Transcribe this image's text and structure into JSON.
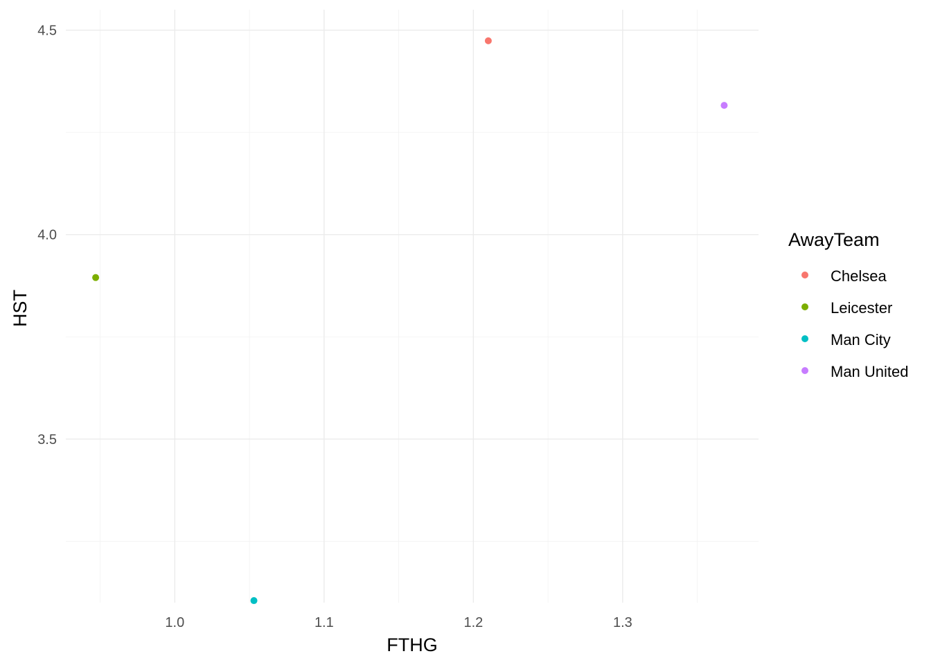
{
  "chart_data": {
    "type": "scatter",
    "xlabel": "FTHG",
    "ylabel": "HST",
    "xlim": [
      0.927,
      1.391
    ],
    "ylim": [
      3.1,
      4.55
    ],
    "x_major_ticks": [
      1.0,
      1.1,
      1.2,
      1.3
    ],
    "x_tick_labels": [
      "1.0",
      "1.1",
      "1.2",
      "1.3"
    ],
    "x_minor_ticks": [
      0.95,
      1.05,
      1.15,
      1.25,
      1.35
    ],
    "y_major_ticks": [
      3.5,
      4.0,
      4.5
    ],
    "y_tick_labels": [
      "3.5",
      "4.0",
      "4.5"
    ],
    "y_minor_ticks": [
      3.25,
      3.75,
      4.25
    ],
    "grid": true,
    "legend": {
      "title": "AwayTeam",
      "position": "right"
    },
    "series": [
      {
        "name": "Chelsea",
        "color": "#F8766D",
        "points": [
          {
            "x": 1.21,
            "y": 4.474
          }
        ]
      },
      {
        "name": "Leicester",
        "color": "#7CAE00",
        "points": [
          {
            "x": 0.947,
            "y": 3.895
          }
        ]
      },
      {
        "name": "Man City",
        "color": "#00BFC4",
        "points": [
          {
            "x": 1.053,
            "y": 3.105
          }
        ]
      },
      {
        "name": "Man United",
        "color": "#C77CFF",
        "points": [
          {
            "x": 1.368,
            "y": 4.316
          }
        ]
      }
    ]
  }
}
